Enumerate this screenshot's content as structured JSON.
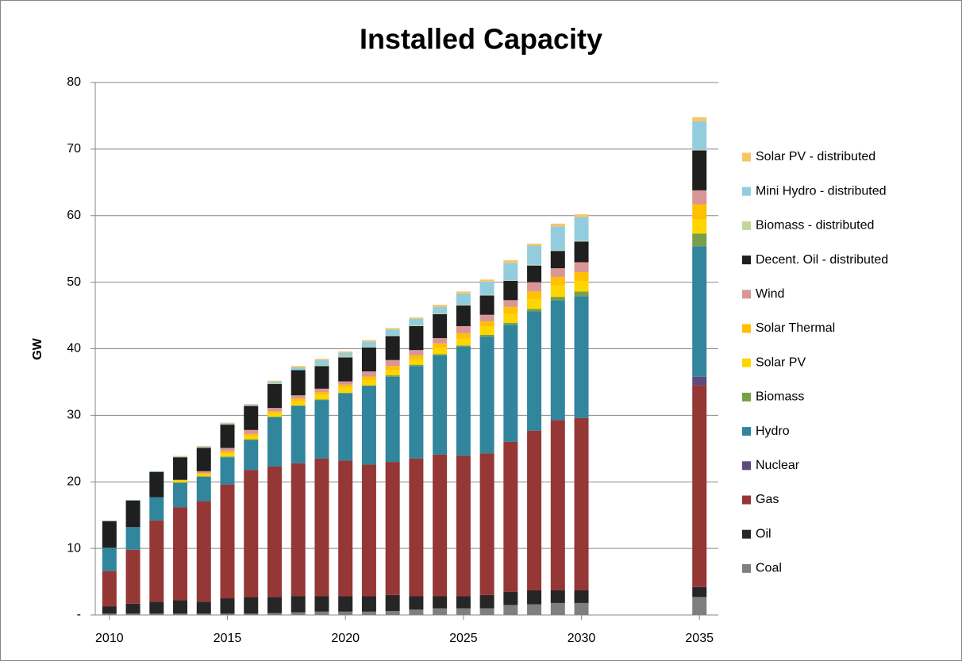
{
  "chart_data": {
    "type": "stacked_bar",
    "title": "Installed Capacity",
    "y_label": "GW",
    "x": [
      2010,
      2011,
      2012,
      2013,
      2014,
      2015,
      2016,
      2017,
      2018,
      2019,
      2020,
      2021,
      2022,
      2023,
      2024,
      2025,
      2026,
      2027,
      2028,
      2029,
      2030,
      2035
    ],
    "xlim": [
      2009.4,
      2035.8
    ],
    "xticks": [
      2010,
      2015,
      2020,
      2025,
      2030,
      2035
    ],
    "ylim": [
      0,
      80
    ],
    "yticks": [
      {
        "value": 0,
        "label": "-"
      },
      10,
      20,
      30,
      40,
      50,
      60,
      70,
      80
    ],
    "grid": true,
    "legend": "right",
    "series": [
      {
        "name": "Coal",
        "color": "#7f7f7f",
        "values": [
          0.2,
          0.2,
          0.2,
          0.2,
          0.2,
          0.2,
          0.2,
          0.3,
          0.4,
          0.5,
          0.5,
          0.5,
          0.6,
          0.8,
          1.0,
          1.0,
          1.0,
          1.5,
          1.6,
          1.8,
          1.8,
          2.7
        ]
      },
      {
        "name": "Oil",
        "color": "#262626",
        "values": [
          1.1,
          1.5,
          1.8,
          2.0,
          1.8,
          2.3,
          2.5,
          2.4,
          2.4,
          2.3,
          2.3,
          2.3,
          2.4,
          2.0,
          1.8,
          1.8,
          2.0,
          2.0,
          2.1,
          1.9,
          1.9,
          1.5
        ]
      },
      {
        "name": "Gas",
        "color": "#953735",
        "values": [
          5.3,
          8.1,
          12.2,
          14.0,
          15.1,
          17.1,
          19.1,
          19.6,
          20.0,
          20.7,
          20.4,
          19.8,
          20.0,
          20.7,
          21.3,
          21.1,
          21.3,
          22.5,
          24.0,
          25.6,
          25.9,
          30.3
        ]
      },
      {
        "name": "Nuclear",
        "color": "#604a7b",
        "values": [
          0,
          0,
          0,
          0,
          0,
          0,
          0,
          0,
          0,
          0,
          0,
          0,
          0,
          0,
          0,
          0,
          0,
          0,
          0,
          0,
          0,
          1.3
        ]
      },
      {
        "name": "Hydro",
        "color": "#31859c",
        "values": [
          3.5,
          3.4,
          3.5,
          3.7,
          3.7,
          4.1,
          4.5,
          7.4,
          8.6,
          8.8,
          10.1,
          11.8,
          12.8,
          13.9,
          14.9,
          16.4,
          17.5,
          17.6,
          17.9,
          18.0,
          18.3,
          19.6
        ]
      },
      {
        "name": "Biomass",
        "color": "#77a049",
        "values": [
          0,
          0,
          0,
          0,
          0,
          0.1,
          0.1,
          0.1,
          0.1,
          0.1,
          0.1,
          0.1,
          0.2,
          0.2,
          0.2,
          0.2,
          0.3,
          0.3,
          0.4,
          0.5,
          0.7,
          1.9
        ]
      },
      {
        "name": "Solar PV",
        "color": "#ffd500",
        "values": [
          0,
          0,
          0,
          0.3,
          0.3,
          0.5,
          0.5,
          0.5,
          0.6,
          0.7,
          0.8,
          0.8,
          0.8,
          0.8,
          0.9,
          1.0,
          1.2,
          1.4,
          1.5,
          1.7,
          1.6,
          2.1
        ]
      },
      {
        "name": "Solar Thermal",
        "color": "#ffc000",
        "values": [
          0,
          0,
          0,
          0.1,
          0.2,
          0.3,
          0.3,
          0.3,
          0.4,
          0.4,
          0.4,
          0.5,
          0.6,
          0.6,
          0.7,
          0.8,
          0.8,
          1.0,
          1.1,
          1.3,
          1.3,
          2.3
        ]
      },
      {
        "name": "Wind",
        "color": "#d99694",
        "values": [
          0,
          0,
          0,
          0,
          0.3,
          0.5,
          0.6,
          0.5,
          0.5,
          0.5,
          0.5,
          0.8,
          0.9,
          0.8,
          0.8,
          1.1,
          1.0,
          1.0,
          1.4,
          1.3,
          1.5,
          2.1
        ]
      },
      {
        "name": "Decent. Oil - distributed",
        "color": "#1f1f1f",
        "values": [
          4.0,
          4.0,
          3.8,
          3.4,
          3.5,
          3.5,
          3.6,
          3.6,
          3.8,
          3.4,
          3.6,
          3.6,
          3.6,
          3.6,
          3.6,
          3.1,
          2.9,
          2.9,
          2.5,
          2.6,
          3.1,
          6.0
        ]
      },
      {
        "name": "Biomass - distributed",
        "color": "#c3d69b",
        "values": [
          0,
          0,
          0,
          0,
          0,
          0,
          0,
          0,
          0,
          0.1,
          0.1,
          0.1,
          0.1,
          0.1,
          0.1,
          0.1,
          0.1,
          0.1,
          0.1,
          0.1,
          0.1,
          0.1
        ]
      },
      {
        "name": "Mini Hydro - distributed",
        "color": "#93cddd",
        "values": [
          0.1,
          0.1,
          0.1,
          0.1,
          0.2,
          0.2,
          0.2,
          0.3,
          0.4,
          0.8,
          0.6,
          0.8,
          0.9,
          1.0,
          1.0,
          1.7,
          2.0,
          2.6,
          2.9,
          3.6,
          3.6,
          4.3
        ]
      },
      {
        "name": "Solar PV - distributed",
        "color": "#fac563",
        "values": [
          0,
          0,
          0,
          0.1,
          0.1,
          0.1,
          0.1,
          0.2,
          0.2,
          0.2,
          0.2,
          0.2,
          0.2,
          0.2,
          0.3,
          0.3,
          0.3,
          0.4,
          0.3,
          0.4,
          0.4,
          0.6
        ]
      }
    ]
  }
}
